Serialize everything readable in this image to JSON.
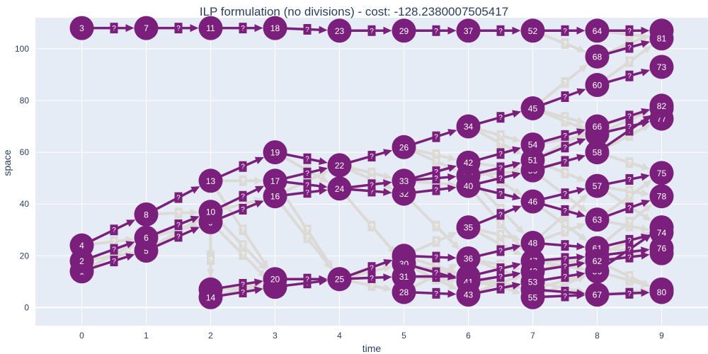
{
  "colors": {
    "plot_bg": "#e5ecf6",
    "grid": "#ffffff",
    "selected": "#7b1f7c",
    "candidate": "#dcdad7",
    "text": "#2a3f5f"
  },
  "chart_data": {
    "type": "scatter",
    "title": "ILP formulation (no divisions) - cost: -128.2380007505417",
    "xlabel": "time",
    "ylabel": "space",
    "xlim": [
      -0.72,
      9.72
    ],
    "ylim": [
      -7,
      112
    ],
    "x_ticks": [
      0,
      1,
      2,
      3,
      4,
      5,
      6,
      7,
      8,
      9
    ],
    "y_ticks": [
      0,
      20,
      40,
      60,
      80,
      100
    ],
    "grid": true,
    "edge_label": "?",
    "nodes": [
      {
        "id": "1",
        "t": 0,
        "y": 14
      },
      {
        "id": "2",
        "t": 0,
        "y": 18
      },
      {
        "id": "3",
        "t": 0,
        "y": 108
      },
      {
        "id": "4",
        "t": 0,
        "y": 24
      },
      {
        "id": "5",
        "t": 1,
        "y": 22
      },
      {
        "id": "6",
        "t": 1,
        "y": 27
      },
      {
        "id": "7",
        "t": 1,
        "y": 108
      },
      {
        "id": "8",
        "t": 1,
        "y": 36
      },
      {
        "id": "9",
        "t": 2,
        "y": 33
      },
      {
        "id": "10",
        "t": 2,
        "y": 37
      },
      {
        "id": "11",
        "t": 2,
        "y": 108
      },
      {
        "id": "12",
        "t": 2,
        "y": 7
      },
      {
        "id": "13",
        "t": 2,
        "y": 49
      },
      {
        "id": "14",
        "t": 2,
        "y": 4
      },
      {
        "id": "15",
        "t": 3,
        "y": 8
      },
      {
        "id": "16",
        "t": 3,
        "y": 43
      },
      {
        "id": "17",
        "t": 3,
        "y": 49
      },
      {
        "id": "18",
        "t": 3,
        "y": 108
      },
      {
        "id": "19",
        "t": 3,
        "y": 60
      },
      {
        "id": "20",
        "t": 3,
        "y": 11
      },
      {
        "id": "21",
        "t": 4,
        "y": 11
      },
      {
        "id": "22",
        "t": 4,
        "y": 55
      },
      {
        "id": "23",
        "t": 4,
        "y": 107
      },
      {
        "id": "24",
        "t": 4,
        "y": 46
      },
      {
        "id": "25",
        "t": 4,
        "y": 11
      },
      {
        "id": "26",
        "t": 5,
        "y": 62
      },
      {
        "id": "27",
        "t": 5,
        "y": 20
      },
      {
        "id": "28",
        "t": 5,
        "y": 6
      },
      {
        "id": "29",
        "t": 5,
        "y": 107
      },
      {
        "id": "30",
        "t": 5,
        "y": 17
      },
      {
        "id": "31",
        "t": 5,
        "y": 12
      },
      {
        "id": "32",
        "t": 5,
        "y": 44
      },
      {
        "id": "33",
        "t": 5,
        "y": 49
      },
      {
        "id": "34",
        "t": 6,
        "y": 70
      },
      {
        "id": "35",
        "t": 6,
        "y": 31
      },
      {
        "id": "36",
        "t": 6,
        "y": 19
      },
      {
        "id": "37",
        "t": 6,
        "y": 107
      },
      {
        "id": "38",
        "t": 6,
        "y": 12
      },
      {
        "id": "39",
        "t": 6,
        "y": 51
      },
      {
        "id": "40",
        "t": 6,
        "y": 47
      },
      {
        "id": "41",
        "t": 6,
        "y": 10
      },
      {
        "id": "42",
        "t": 6,
        "y": 56
      },
      {
        "id": "43",
        "t": 6,
        "y": 5
      },
      {
        "id": "44",
        "t": 7,
        "y": 7
      },
      {
        "id": "45",
        "t": 7,
        "y": 77
      },
      {
        "id": "46",
        "t": 7,
        "y": 41
      },
      {
        "id": "47",
        "t": 7,
        "y": 18
      },
      {
        "id": "48",
        "t": 7,
        "y": 25
      },
      {
        "id": "49",
        "t": 7,
        "y": 14
      },
      {
        "id": "50",
        "t": 7,
        "y": 53
      },
      {
        "id": "51",
        "t": 7,
        "y": 57
      },
      {
        "id": "52",
        "t": 7,
        "y": 107
      },
      {
        "id": "53",
        "t": 7,
        "y": 10
      },
      {
        "id": "54",
        "t": 7,
        "y": 63
      },
      {
        "id": "55",
        "t": 7,
        "y": 4
      },
      {
        "id": "56",
        "t": 8,
        "y": 14
      },
      {
        "id": "57",
        "t": 8,
        "y": 47
      },
      {
        "id": "58",
        "t": 8,
        "y": 60
      },
      {
        "id": "59",
        "t": 8,
        "y": 20
      },
      {
        "id": "60",
        "t": 8,
        "y": 86
      },
      {
        "id": "61",
        "t": 8,
        "y": 23
      },
      {
        "id": "62",
        "t": 8,
        "y": 18
      },
      {
        "id": "63",
        "t": 8,
        "y": 34
      },
      {
        "id": "64",
        "t": 8,
        "y": 107
      },
      {
        "id": "65",
        "t": 8,
        "y": 67
      },
      {
        "id": "66",
        "t": 8,
        "y": 70
      },
      {
        "id": "67",
        "t": 8,
        "y": 5
      },
      {
        "id": "68",
        "t": 8,
        "y": 97
      },
      {
        "id": "69",
        "t": 9,
        "y": 21
      },
      {
        "id": "70",
        "t": 9,
        "y": 7
      },
      {
        "id": "71",
        "t": 9,
        "y": 31
      },
      {
        "id": "72",
        "t": 9,
        "y": 77
      },
      {
        "id": "73",
        "t": 9,
        "y": 93
      },
      {
        "id": "74",
        "t": 9,
        "y": 29
      },
      {
        "id": "75",
        "t": 9,
        "y": 52
      },
      {
        "id": "76",
        "t": 9,
        "y": 23
      },
      {
        "id": "77",
        "t": 9,
        "y": 73
      },
      {
        "id": "78",
        "t": 9,
        "y": 43
      },
      {
        "id": "79",
        "t": 9,
        "y": 107
      },
      {
        "id": "80",
        "t": 9,
        "y": 6
      },
      {
        "id": "81",
        "t": 9,
        "y": 104
      },
      {
        "id": "82",
        "t": 9,
        "y": 78
      }
    ],
    "selected_edges": [
      [
        "3",
        "7"
      ],
      [
        "7",
        "11"
      ],
      [
        "11",
        "18"
      ],
      [
        "18",
        "23"
      ],
      [
        "23",
        "29"
      ],
      [
        "29",
        "37"
      ],
      [
        "37",
        "52"
      ],
      [
        "52",
        "64"
      ],
      [
        "64",
        "79"
      ],
      [
        "68",
        "81"
      ],
      [
        "60",
        "73"
      ],
      [
        "4",
        "8"
      ],
      [
        "8",
        "13"
      ],
      [
        "13",
        "19"
      ],
      [
        "19",
        "22"
      ],
      [
        "22",
        "26"
      ],
      [
        "26",
        "34"
      ],
      [
        "34",
        "45"
      ],
      [
        "45",
        "60"
      ],
      [
        "2",
        "6"
      ],
      [
        "6",
        "10"
      ],
      [
        "10",
        "17"
      ],
      [
        "17",
        "22"
      ],
      [
        "1",
        "5"
      ],
      [
        "5",
        "9"
      ],
      [
        "9",
        "16"
      ],
      [
        "16",
        "24"
      ],
      [
        "24",
        "32"
      ],
      [
        "32",
        "40"
      ],
      [
        "40",
        "50"
      ],
      [
        "50",
        "58"
      ],
      [
        "58",
        "72"
      ],
      [
        "17",
        "24"
      ],
      [
        "24",
        "33"
      ],
      [
        "33",
        "42"
      ],
      [
        "42",
        "54"
      ],
      [
        "54",
        "66"
      ],
      [
        "66",
        "82"
      ],
      [
        "33",
        "39"
      ],
      [
        "39",
        "51"
      ],
      [
        "51",
        "65"
      ],
      [
        "65",
        "77"
      ],
      [
        "12",
        "20"
      ],
      [
        "14",
        "15"
      ],
      [
        "15",
        "21"
      ],
      [
        "20",
        "25"
      ],
      [
        "21",
        "31"
      ],
      [
        "25",
        "27"
      ],
      [
        "27",
        "36"
      ],
      [
        "36",
        "48"
      ],
      [
        "48",
        "61"
      ],
      [
        "61",
        "74"
      ],
      [
        "31",
        "38"
      ],
      [
        "38",
        "47"
      ],
      [
        "47",
        "59"
      ],
      [
        "59",
        "76"
      ],
      [
        "30",
        "41"
      ],
      [
        "41",
        "49"
      ],
      [
        "49",
        "62"
      ],
      [
        "62",
        "69"
      ],
      [
        "28",
        "43"
      ],
      [
        "43",
        "53"
      ],
      [
        "53",
        "56"
      ],
      [
        "56",
        "71"
      ],
      [
        "44",
        "67"
      ],
      [
        "55",
        "67"
      ],
      [
        "67",
        "80"
      ],
      [
        "40",
        "46"
      ],
      [
        "46",
        "57"
      ],
      [
        "57",
        "75"
      ],
      [
        "35",
        "46"
      ],
      [
        "46",
        "63"
      ],
      [
        "63",
        "78"
      ]
    ],
    "candidate_edges": [
      [
        "1",
        "6"
      ],
      [
        "2",
        "5"
      ],
      [
        "4",
        "6"
      ],
      [
        "5",
        "10"
      ],
      [
        "6",
        "9"
      ],
      [
        "8",
        "10"
      ],
      [
        "9",
        "12"
      ],
      [
        "9",
        "14"
      ],
      [
        "10",
        "16"
      ],
      [
        "13",
        "17"
      ],
      [
        "12",
        "15"
      ],
      [
        "14",
        "20"
      ],
      [
        "10",
        "20"
      ],
      [
        "13",
        "20"
      ],
      [
        "9",
        "15"
      ],
      [
        "19",
        "24"
      ],
      [
        "16",
        "22"
      ],
      [
        "16",
        "21"
      ],
      [
        "17",
        "25"
      ],
      [
        "20",
        "21"
      ],
      [
        "15",
        "25"
      ],
      [
        "22",
        "33"
      ],
      [
        "24",
        "30"
      ],
      [
        "21",
        "27"
      ],
      [
        "21",
        "28"
      ],
      [
        "25",
        "31"
      ],
      [
        "21",
        "30"
      ],
      [
        "24",
        "32"
      ],
      [
        "22",
        "32"
      ],
      [
        "26",
        "42"
      ],
      [
        "26",
        "39"
      ],
      [
        "27",
        "35"
      ],
      [
        "27",
        "38"
      ],
      [
        "28",
        "36"
      ],
      [
        "30",
        "43"
      ],
      [
        "31",
        "41"
      ],
      [
        "33",
        "40"
      ],
      [
        "32",
        "36"
      ],
      [
        "30",
        "38"
      ],
      [
        "34",
        "54"
      ],
      [
        "34",
        "51"
      ],
      [
        "35",
        "48"
      ],
      [
        "35",
        "47"
      ],
      [
        "36",
        "53"
      ],
      [
        "36",
        "49"
      ],
      [
        "38",
        "55"
      ],
      [
        "38",
        "44"
      ],
      [
        "39",
        "50"
      ],
      [
        "42",
        "50"
      ],
      [
        "40",
        "47"
      ],
      [
        "41",
        "44"
      ],
      [
        "43",
        "49"
      ],
      [
        "42",
        "46"
      ],
      [
        "39",
        "48"
      ],
      [
        "45",
        "66"
      ],
      [
        "45",
        "68"
      ],
      [
        "46",
        "61"
      ],
      [
        "47",
        "56"
      ],
      [
        "48",
        "57"
      ],
      [
        "49",
        "59"
      ],
      [
        "50",
        "58"
      ],
      [
        "51",
        "66"
      ],
      [
        "53",
        "67"
      ],
      [
        "54",
        "65"
      ],
      [
        "55",
        "56"
      ],
      [
        "44",
        "56"
      ],
      [
        "47",
        "62"
      ],
      [
        "48",
        "63"
      ],
      [
        "45",
        "65"
      ],
      [
        "52",
        "68"
      ],
      [
        "50",
        "63"
      ],
      [
        "51",
        "57"
      ],
      [
        "56",
        "70"
      ],
      [
        "57",
        "78"
      ],
      [
        "58",
        "75"
      ],
      [
        "59",
        "71"
      ],
      [
        "60",
        "81"
      ],
      [
        "61",
        "69"
      ],
      [
        "62",
        "76"
      ],
      [
        "63",
        "74"
      ],
      [
        "64",
        "81"
      ],
      [
        "65",
        "82"
      ],
      [
        "66",
        "72"
      ],
      [
        "67",
        "70"
      ],
      [
        "68",
        "79"
      ],
      [
        "58",
        "77"
      ],
      [
        "57",
        "71"
      ],
      [
        "63",
        "75"
      ],
      [
        "61",
        "78"
      ],
      [
        "62",
        "80"
      ]
    ]
  }
}
